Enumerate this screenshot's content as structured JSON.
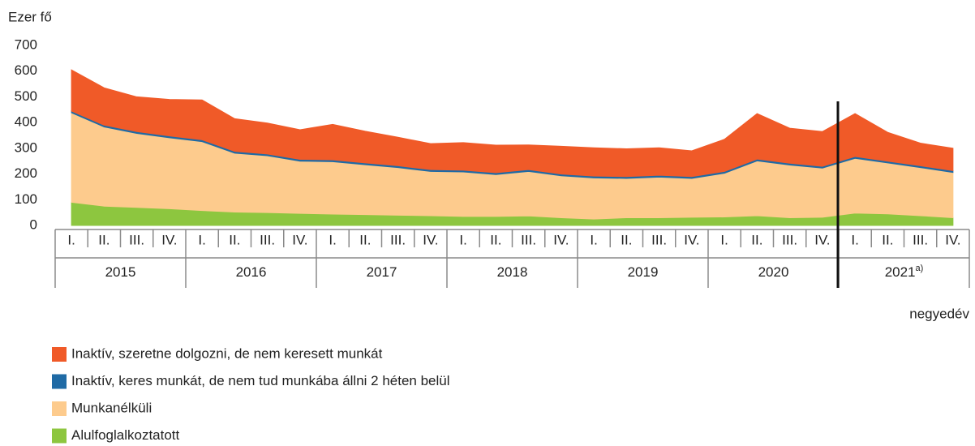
{
  "chart_data": {
    "type": "stacked_area",
    "y_label": "Ezer fő",
    "x_label": "negyedév",
    "categories": [
      "I.",
      "II.",
      "III.",
      "IV.",
      "I.",
      "II.",
      "III.",
      "IV.",
      "I.",
      "II.",
      "III.",
      "IV.",
      "I.",
      "II.",
      "III.",
      "IV.",
      "I.",
      "II.",
      "III.",
      "IV.",
      "I.",
      "II.",
      "III.",
      "IV.",
      "I.",
      "II.",
      "III.",
      "IV."
    ],
    "year_groups": [
      {
        "label": "2015"
      },
      {
        "label": "2016"
      },
      {
        "label": "2017"
      },
      {
        "label": "2018"
      },
      {
        "label": "2019"
      },
      {
        "label": "2020"
      },
      {
        "label": "2021",
        "note": "a)"
      }
    ],
    "ylim": [
      0,
      700
    ],
    "yticks": [
      0,
      100,
      200,
      300,
      400,
      500,
      600,
      700
    ],
    "series": [
      {
        "name": "Alulfoglalkoztatott",
        "color": "#8dc63f",
        "values": [
          90,
          75,
          70,
          65,
          58,
          52,
          50,
          47,
          44,
          42,
          40,
          38,
          35,
          35,
          37,
          30,
          25,
          30,
          30,
          32,
          33,
          38,
          30,
          32,
          48,
          45,
          38,
          30
        ]
      },
      {
        "name": "Munkanélküli",
        "color": "#fdcb8d",
        "values": [
          348,
          308,
          288,
          276,
          268,
          229,
          221,
          203,
          204,
          194,
          185,
          172,
          173,
          163,
          173,
          163,
          160,
          153,
          158,
          151,
          170,
          213,
          205,
          191,
          213,
          198,
          187,
          176
        ]
      },
      {
        "name": "Inaktív, keres munkát, de nem tud munkába állni 2 héten belül",
        "color": "#1f6aa5",
        "values": [
          7,
          7,
          7,
          7,
          7,
          7,
          7,
          7,
          7,
          7,
          7,
          7,
          7,
          7,
          7,
          7,
          7,
          7,
          7,
          7,
          7,
          7,
          7,
          7,
          7,
          7,
          7,
          7
        ]
      },
      {
        "name": "Inaktív, szeretne dolgozni, de nem keresett munkát",
        "color": "#f05a28",
        "values": [
          160,
          145,
          135,
          142,
          155,
          127,
          120,
          115,
          138,
          123,
          111,
          101,
          107,
          107,
          96,
          108,
          110,
          108,
          107,
          100,
          125,
          177,
          136,
          135,
          167,
          112,
          88,
          87
        ]
      }
    ]
  }
}
